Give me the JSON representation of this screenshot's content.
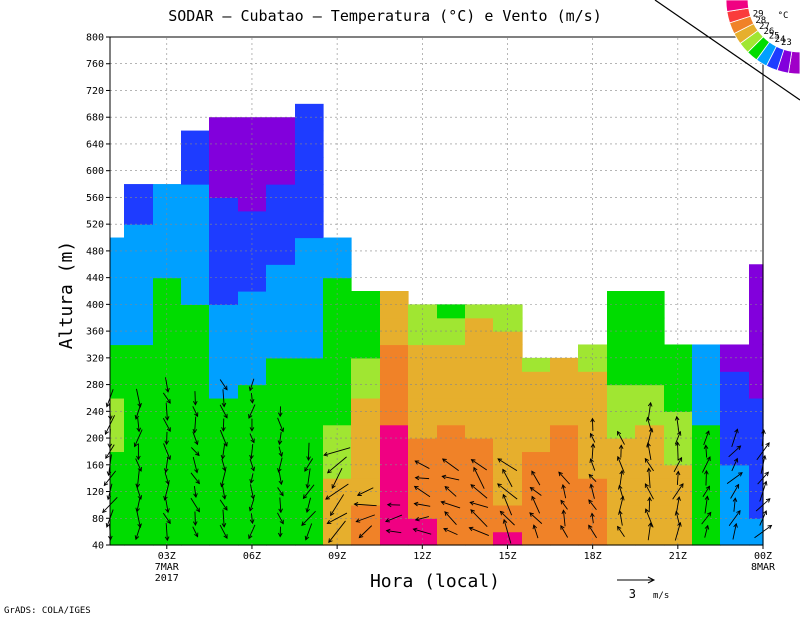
{
  "chart_data": {
    "type": "heatmap",
    "title": "SODAR — Cubatao — Temperatura (°C) e Vento (m/s)",
    "xlabel": "Hora (local)",
    "ylabel": "Altura (m)",
    "ylim": [
      40,
      800
    ],
    "y_ticks": [
      40,
      80,
      120,
      160,
      200,
      240,
      280,
      320,
      360,
      400,
      440,
      480,
      520,
      560,
      600,
      640,
      680,
      720,
      760,
      800
    ],
    "x_ticks": [
      {
        "hour": 3,
        "label": "03Z",
        "sub1": "7MAR",
        "sub2": "2017"
      },
      {
        "hour": 6,
        "label": "06Z",
        "sub1": "",
        "sub2": ""
      },
      {
        "hour": 9,
        "label": "09Z",
        "sub1": "",
        "sub2": ""
      },
      {
        "hour": 12,
        "label": "12Z",
        "sub1": "",
        "sub2": ""
      },
      {
        "hour": 15,
        "label": "15Z",
        "sub1": "",
        "sub2": ""
      },
      {
        "hour": 18,
        "label": "18Z",
        "sub1": "",
        "sub2": ""
      },
      {
        "hour": 21,
        "label": "21Z",
        "sub1": "",
        "sub2": ""
      },
      {
        "hour": 24,
        "label": "00Z",
        "sub1": "8MAR",
        "sub2": ""
      }
    ],
    "xlim": [
      1,
      24
    ],
    "grid": true,
    "colorbar": {
      "unit": "°C",
      "levels": [
        23,
        24,
        25,
        26,
        27,
        28,
        29
      ],
      "colors": [
        "#a000c8",
        "#8200dc",
        "#1e3cff",
        "#00a0ff",
        "#00dc00",
        "#a0e632",
        "#e6af2d",
        "#f08228",
        "#fa3c3c",
        "#f00082"
      ]
    },
    "temperature_columns": [
      {
        "t": 1.0,
        "top": 500,
        "levels": [
          {
            "h": 40,
            "T": 26.5
          },
          {
            "h": 120,
            "T": 26.8
          },
          {
            "h": 250,
            "T": 27.2
          },
          {
            "h": 320,
            "T": 26.2
          },
          {
            "h": 440,
            "T": 25.2
          }
        ]
      },
      {
        "t": 2.0,
        "top": 580,
        "levels": [
          {
            "h": 40,
            "T": 26.4
          },
          {
            "h": 200,
            "T": 26.3
          },
          {
            "h": 320,
            "T": 26.1
          },
          {
            "h": 480,
            "T": 25.4
          },
          {
            "h": 560,
            "T": 24.6
          }
        ]
      },
      {
        "t": 3.0,
        "top": 580,
        "levels": [
          {
            "h": 40,
            "T": 26.8
          },
          {
            "h": 200,
            "T": 26.4
          },
          {
            "h": 360,
            "T": 26.6
          },
          {
            "h": 480,
            "T": 25.6
          },
          {
            "h": 560,
            "T": 25.3
          }
        ]
      },
      {
        "t": 4.0,
        "top": 660,
        "levels": [
          {
            "h": 40,
            "T": 26.6
          },
          {
            "h": 280,
            "T": 26.7
          },
          {
            "h": 400,
            "T": 26.0
          },
          {
            "h": 560,
            "T": 25.2
          },
          {
            "h": 640,
            "T": 24.5
          }
        ]
      },
      {
        "t": 5.0,
        "top": 680,
        "levels": [
          {
            "h": 40,
            "T": 26.3
          },
          {
            "h": 200,
            "T": 26.4
          },
          {
            "h": 320,
            "T": 25.5
          },
          {
            "h": 480,
            "T": 24.5
          },
          {
            "h": 640,
            "T": 23.6
          }
        ]
      },
      {
        "t": 6.0,
        "top": 680,
        "levels": [
          {
            "h": 40,
            "T": 26.7
          },
          {
            "h": 240,
            "T": 26.3
          },
          {
            "h": 360,
            "T": 25.5
          },
          {
            "h": 480,
            "T": 24.3
          },
          {
            "h": 640,
            "T": 23.5
          }
        ]
      },
      {
        "t": 7.0,
        "top": 680,
        "levels": [
          {
            "h": 40,
            "T": 26.2
          },
          {
            "h": 160,
            "T": 26.8
          },
          {
            "h": 320,
            "T": 26.0
          },
          {
            "h": 480,
            "T": 24.8
          },
          {
            "h": 640,
            "T": 23.6
          }
        ]
      },
      {
        "t": 8.0,
        "top": 700,
        "levels": [
          {
            "h": 40,
            "T": 26.5
          },
          {
            "h": 200,
            "T": 26.7
          },
          {
            "h": 360,
            "T": 25.8
          },
          {
            "h": 560,
            "T": 24.6
          },
          {
            "h": 680,
            "T": 24.0
          }
        ]
      },
      {
        "t": 9.0,
        "top": 500,
        "levels": [
          {
            "h": 40,
            "T": 28.5
          },
          {
            "h": 120,
            "T": 27.6
          },
          {
            "h": 240,
            "T": 26.9
          },
          {
            "h": 380,
            "T": 26.5
          },
          {
            "h": 480,
            "T": 25.5
          }
        ]
      },
      {
        "t": 10.0,
        "top": 420,
        "levels": [
          {
            "h": 40,
            "T": 28.8
          },
          {
            "h": 120,
            "T": 28.4
          },
          {
            "h": 240,
            "T": 27.6
          },
          {
            "h": 320,
            "T": 27.0
          },
          {
            "h": 400,
            "T": 26.6
          }
        ]
      },
      {
        "t": 11.0,
        "top": 420,
        "levels": [
          {
            "h": 40,
            "T": 29.7
          },
          {
            "h": 160,
            "T": 29.3
          },
          {
            "h": 260,
            "T": 28.8
          },
          {
            "h": 360,
            "T": 28.4
          },
          {
            "h": 400,
            "T": 27.8
          }
        ]
      },
      {
        "t": 12.0,
        "top": 400,
        "levels": [
          {
            "h": 40,
            "T": 29.1
          },
          {
            "h": 160,
            "T": 28.7
          },
          {
            "h": 240,
            "T": 28.2
          },
          {
            "h": 320,
            "T": 27.6
          },
          {
            "h": 400,
            "T": 27.0
          }
        ]
      },
      {
        "t": 13.0,
        "top": 400,
        "levels": [
          {
            "h": 40,
            "T": 28.8
          },
          {
            "h": 200,
            "T": 28.6
          },
          {
            "h": 280,
            "T": 27.8
          },
          {
            "h": 360,
            "T": 27.4
          },
          {
            "h": 400,
            "T": 26.8
          }
        ]
      },
      {
        "t": 14.0,
        "top": 400,
        "levels": [
          {
            "h": 40,
            "T": 28.9
          },
          {
            "h": 200,
            "T": 28.5
          },
          {
            "h": 280,
            "T": 28.0
          },
          {
            "h": 360,
            "T": 27.7
          },
          {
            "h": 400,
            "T": 27.0
          }
        ]
      },
      {
        "t": 15.0,
        "top": 400,
        "levels": [
          {
            "h": 40,
            "T": 29.2
          },
          {
            "h": 180,
            "T": 27.7
          },
          {
            "h": 280,
            "T": 27.9
          },
          {
            "h": 360,
            "T": 27.6
          },
          {
            "h": 400,
            "T": 27.0
          }
        ]
      },
      {
        "t": 16.0,
        "top": 320,
        "levels": [
          {
            "h": 40,
            "T": 29.0
          },
          {
            "h": 200,
            "T": 28.4
          },
          {
            "h": 280,
            "T": 27.6
          },
          {
            "h": 320,
            "T": 27.3
          }
        ]
      },
      {
        "t": 17.0,
        "top": 320,
        "levels": [
          {
            "h": 40,
            "T": 28.9
          },
          {
            "h": 200,
            "T": 28.6
          },
          {
            "h": 280,
            "T": 27.8
          },
          {
            "h": 320,
            "T": 27.4
          }
        ]
      },
      {
        "t": 18.0,
        "top": 340,
        "levels": [
          {
            "h": 40,
            "T": 28.8
          },
          {
            "h": 200,
            "T": 28.3
          },
          {
            "h": 280,
            "T": 27.6
          },
          {
            "h": 340,
            "T": 27.2
          }
        ]
      },
      {
        "t": 19.0,
        "top": 420,
        "levels": [
          {
            "h": 40,
            "T": 28.0
          },
          {
            "h": 200,
            "T": 27.5
          },
          {
            "h": 300,
            "T": 26.9
          },
          {
            "h": 380,
            "T": 26.4
          },
          {
            "h": 420,
            "T": 26.0
          }
        ]
      },
      {
        "t": 20.0,
        "top": 420,
        "levels": [
          {
            "h": 40,
            "T": 27.7
          },
          {
            "h": 200,
            "T": 27.6
          },
          {
            "h": 300,
            "T": 26.8
          },
          {
            "h": 380,
            "T": 26.4
          },
          {
            "h": 420,
            "T": 26.2
          }
        ]
      },
      {
        "t": 21.0,
        "top": 340,
        "levels": [
          {
            "h": 40,
            "T": 27.8
          },
          {
            "h": 200,
            "T": 27.4
          },
          {
            "h": 280,
            "T": 26.7
          },
          {
            "h": 340,
            "T": 26.6
          }
        ]
      },
      {
        "t": 22.0,
        "top": 340,
        "levels": [
          {
            "h": 40,
            "T": 26.4
          },
          {
            "h": 200,
            "T": 26.1
          },
          {
            "h": 280,
            "T": 25.6
          },
          {
            "h": 340,
            "T": 25.4
          }
        ]
      },
      {
        "t": 23.0,
        "top": 340,
        "levels": [
          {
            "h": 40,
            "T": 25.5
          },
          {
            "h": 200,
            "T": 24.8
          },
          {
            "h": 280,
            "T": 24.2
          },
          {
            "h": 340,
            "T": 23.5
          }
        ]
      },
      {
        "t": 24.0,
        "top": 460,
        "levels": [
          {
            "h": 40,
            "T": 25.1
          },
          {
            "h": 200,
            "T": 24.6
          },
          {
            "h": 280,
            "T": 23.8
          },
          {
            "h": 460,
            "T": 23.2
          }
        ]
      }
    ],
    "wind_columns_hours": [
      1.0,
      2.0,
      3.0,
      4.0,
      5.0,
      6.0,
      7.0,
      8.0,
      9.0,
      10.0,
      11.0,
      12.0,
      13.0,
      14.0,
      15.0,
      16.0,
      17.0,
      18.0,
      19.0,
      20.0,
      21.0,
      22.0,
      23.0,
      24.0
    ],
    "wind_levels": [
      60,
      80,
      100,
      120,
      140,
      160,
      180,
      200,
      220,
      240,
      260,
      280,
      300
    ],
    "wind_col_top": [
      260,
      260,
      280,
      260,
      280,
      280,
      240,
      180,
      180,
      120,
      100,
      160,
      160,
      160,
      160,
      140,
      140,
      220,
      200,
      240,
      220,
      200,
      200,
      200
    ],
    "wind_dir_deg": [
      200,
      180,
      170,
      160,
      170,
      180,
      170,
      200,
      230,
      250,
      260,
      280,
      300,
      310,
      320,
      330,
      330,
      340,
      350,
      350,
      10,
      20,
      30,
      30
    ],
    "wind_speed_ms": [
      1.5,
      1.3,
      1.2,
      1.1,
      1.2,
      1.0,
      1.0,
      1.4,
      2.0,
      1.6,
      1.2,
      1.3,
      1.4,
      1.7,
      1.8,
      1.3,
      1.1,
      1.0,
      1.2,
      1.4,
      1.3,
      1.2,
      1.3,
      1.5
    ],
    "wind_reference": {
      "value": "3",
      "unit": "m/s"
    },
    "footer": "GrADS: COLA/IGES"
  }
}
